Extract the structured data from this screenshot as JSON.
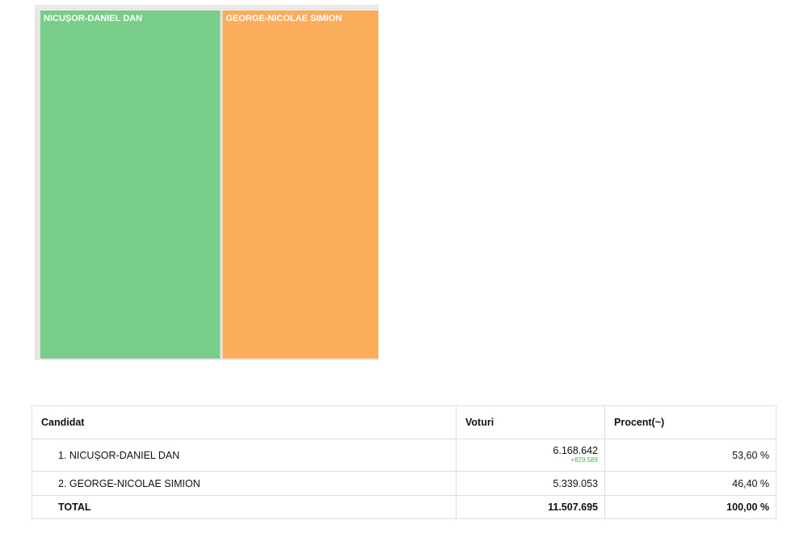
{
  "chart_data": {
    "type": "treemap",
    "title": "",
    "items": [
      {
        "name": "NICUȘOR-DANIEL DAN",
        "value": 6168642,
        "color": "#78cd88"
      },
      {
        "name": "GEORGE-NICOLAE SIMION",
        "value": 5339053,
        "color": "#fbad5c"
      }
    ]
  },
  "table": {
    "headers": {
      "candidate": "Candidat",
      "votes": "Voturi",
      "percent": "Procent(~)"
    },
    "rows": [
      {
        "candidate": "1. NICUȘOR-DANIEL DAN",
        "votes": "6.168.642",
        "delta": "+829.589",
        "percent": "53,60 %"
      },
      {
        "candidate": "2. GEORGE-NICOLAE SIMION",
        "votes": "5.339.053",
        "delta": "",
        "percent": "46,40 %"
      }
    ],
    "total": {
      "label": "TOTAL",
      "votes": "11.507.695",
      "percent": "100,00 %"
    },
    "delta_color": "#4caf50"
  }
}
